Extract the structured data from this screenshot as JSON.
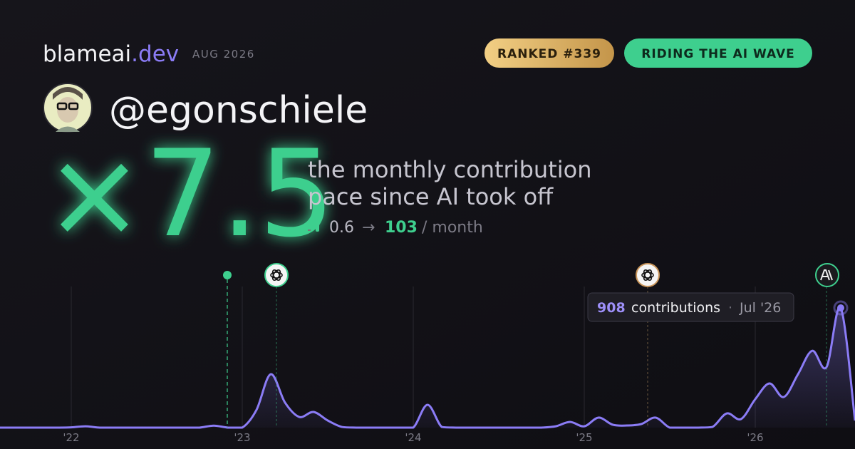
{
  "header": {
    "brand": "blameai",
    "brand_suffix": ".dev",
    "period": "AUG 2026"
  },
  "badges": [
    "RANKED #339",
    "RIDING THE AI WAVE"
  ],
  "user": {
    "handle": "@egonschiele"
  },
  "multiplier": {
    "value": "×7.5",
    "description": [
      "the monthly contribution",
      "pace since AI took off"
    ],
    "from": "0.6",
    "arrow": "→",
    "to": "103",
    "unit": "/ month"
  },
  "chart_data": {
    "type": "area",
    "categories": [
      null,
      null,
      null,
      null,
      null,
      "'22",
      null,
      null,
      null,
      null,
      null,
      null,
      null,
      null,
      null,
      null,
      null,
      "'23",
      null,
      null,
      null,
      null,
      null,
      null,
      null,
      null,
      null,
      null,
      null,
      "'24",
      null,
      null,
      null,
      null,
      null,
      null,
      null,
      null,
      null,
      null,
      null,
      "'25",
      null,
      null,
      null,
      null,
      null,
      null,
      null,
      null,
      null,
      null,
      null,
      "'26",
      null,
      null,
      null,
      null,
      null,
      null,
      null
    ],
    "series": [
      {
        "name": "contributions",
        "color": "#8b7cf6",
        "values": [
          0,
          0,
          0,
          0,
          0,
          2,
          10,
          0,
          0,
          0,
          0,
          0,
          0,
          0,
          0,
          15,
          0,
          0,
          135,
          405,
          190,
          81,
          119,
          54,
          5,
          0,
          0,
          0,
          0,
          0,
          173,
          5,
          0,
          0,
          0,
          0,
          0,
          0,
          0,
          10,
          43,
          10,
          76,
          22,
          16,
          27,
          76,
          0,
          0,
          0,
          5,
          108,
          65,
          216,
          335,
          232,
          405,
          583,
          459,
          908,
          54
        ]
      }
    ],
    "ylim": [
      0,
      1000
    ],
    "grid": true,
    "tooltip": {
      "value": 908,
      "label": "contributions",
      "separator": "·",
      "date": "Jul '26",
      "index": 59
    }
  }
}
